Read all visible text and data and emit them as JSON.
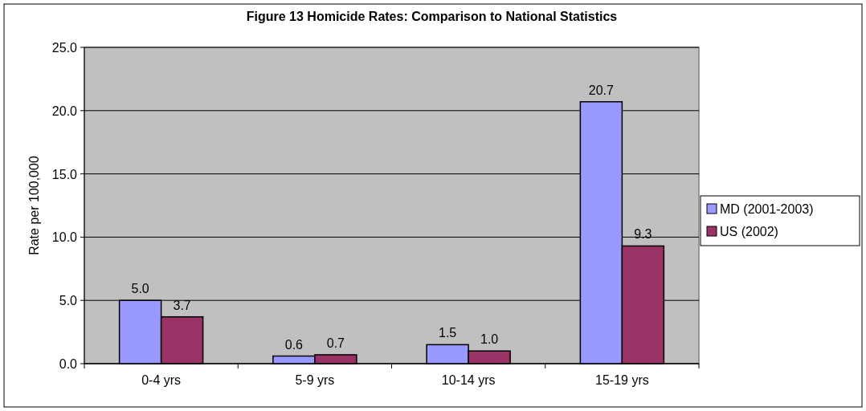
{
  "chart_data": {
    "type": "bar",
    "title": "Figure 13 Homicide Rates: Comparison to National Statistics",
    "ylabel": "Rate per 100,000",
    "categories": [
      "0-4 yrs",
      "5-9 yrs",
      "10-14 yrs",
      "15-19 yrs"
    ],
    "series": [
      {
        "name": "MD (2001-2003)",
        "color": "#9999ff",
        "values": [
          5.0,
          0.6,
          1.5,
          20.7
        ],
        "value_labels": [
          "5.0",
          "0.6",
          "1.5",
          "20.7"
        ]
      },
      {
        "name": "US (2002)",
        "color": "#993366",
        "values": [
          3.7,
          0.7,
          1.0,
          9.3
        ],
        "value_labels": [
          "3.7",
          "0.7",
          "1.0",
          "9.3"
        ]
      }
    ],
    "ylim": [
      0,
      25
    ],
    "yticks": [
      {
        "value": 0,
        "label": "0.0"
      },
      {
        "value": 5,
        "label": "5.0"
      },
      {
        "value": 10,
        "label": "10.0"
      },
      {
        "value": 15,
        "label": "15.0"
      },
      {
        "value": 20,
        "label": "20.0"
      },
      {
        "value": 25,
        "label": "25.0"
      }
    ],
    "grid": "y",
    "legend": "right"
  }
}
